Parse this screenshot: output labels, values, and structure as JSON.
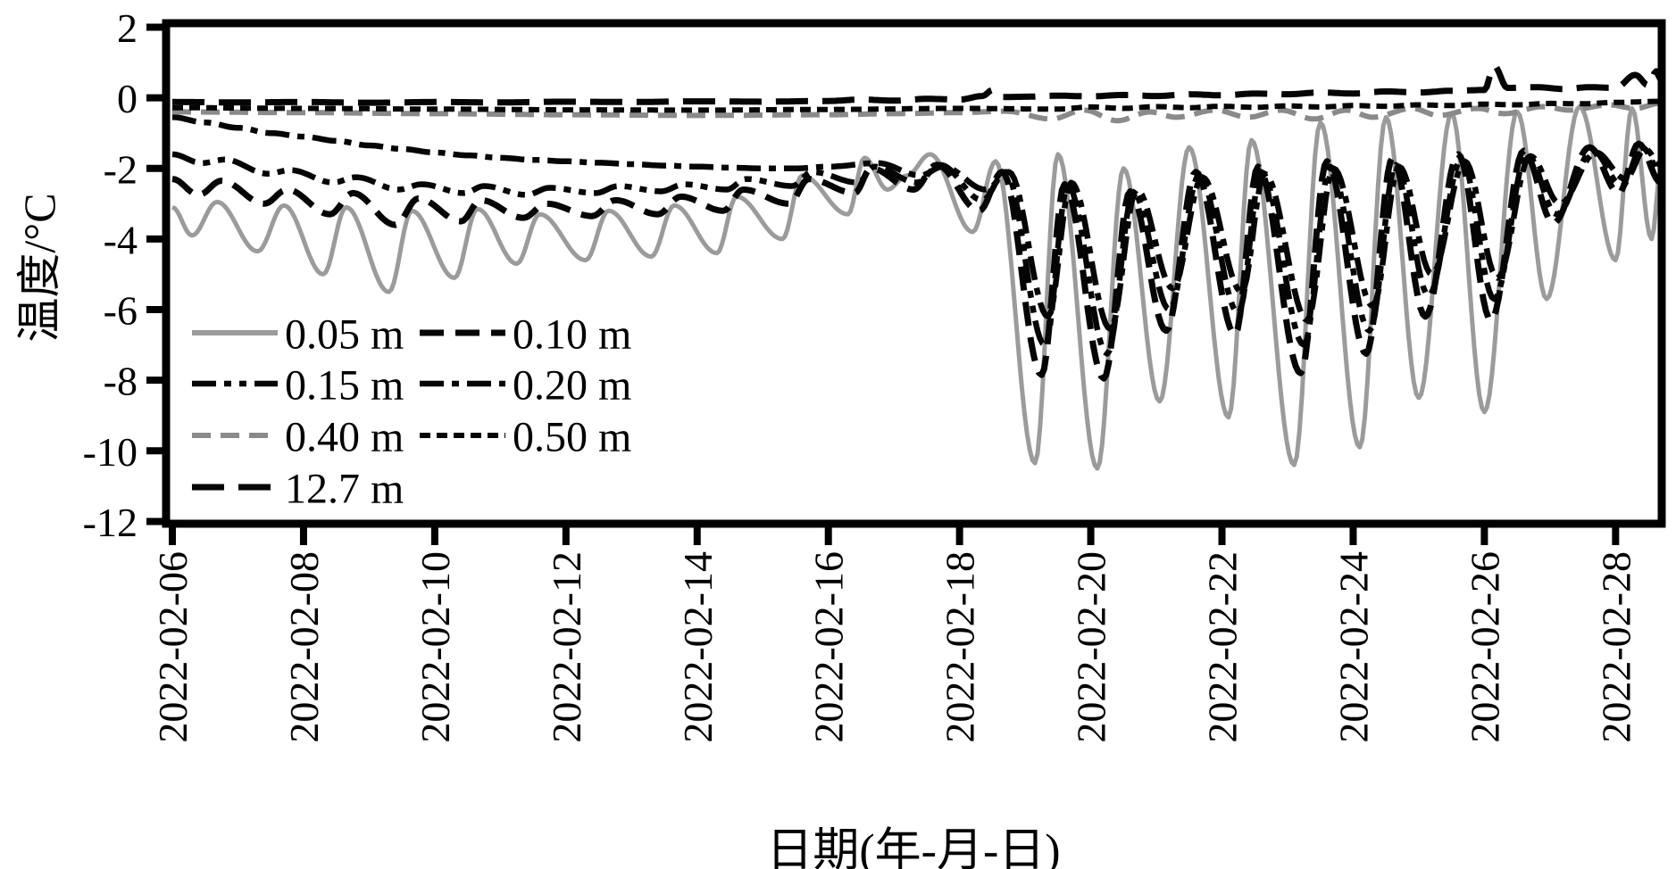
{
  "figure": {
    "x_axis_title": "日期(年-月-日)",
    "y_axis_title": "温度/°C",
    "frame_color": "#000000",
    "background_color": "#ffffff"
  },
  "chart_data": {
    "type": "line",
    "title": "",
    "xlabel": "日期(年-月-日)",
    "ylabel": "温度/°C",
    "x_unit": "days since 2022-02-06",
    "xlim": [
      0,
      22.69
    ],
    "ylim": [
      -12,
      2
    ],
    "yticks": [
      2,
      0,
      -2,
      -4,
      -6,
      -8,
      -10,
      -12
    ],
    "xtick_days": [
      0,
      2,
      4,
      6,
      8,
      10,
      12,
      14,
      16,
      18,
      20,
      22
    ],
    "xtick_labels": [
      "2022-02-06",
      "2022-02-08",
      "2022-02-10",
      "2022-02-12",
      "2022-02-14",
      "2022-02-16",
      "2022-02-18",
      "2022-02-20",
      "2022-02-22",
      "2022-02-24",
      "2022-02-26",
      "2022-02-28"
    ],
    "grid": false,
    "legend_position": "inside lower-left",
    "legend_columns": 2,
    "series": [
      {
        "name": "0.05 m",
        "color": "#9b9b9b",
        "width": 5,
        "dash": "",
        "legend_row": 0,
        "legend_col": 0,
        "points": [
          [
            0,
            -3.1
          ],
          [
            0.3,
            -3.9
          ],
          [
            0.68,
            -2.95
          ],
          [
            1.3,
            -4.35
          ],
          [
            1.7,
            -3.05
          ],
          [
            2.3,
            -5.0
          ],
          [
            2.65,
            -3.1
          ],
          [
            3.3,
            -5.5
          ],
          [
            3.65,
            -3.2
          ],
          [
            4.3,
            -5.1
          ],
          [
            4.65,
            -3.15
          ],
          [
            5.25,
            -4.7
          ],
          [
            5.6,
            -3.3
          ],
          [
            6.3,
            -4.6
          ],
          [
            6.65,
            -3.2
          ],
          [
            7.3,
            -4.5
          ],
          [
            7.65,
            -3.05
          ],
          [
            8.3,
            -4.4
          ],
          [
            8.6,
            -2.8
          ],
          [
            9.3,
            -4.0
          ],
          [
            9.6,
            -2.2
          ],
          [
            10.3,
            -3.3
          ],
          [
            10.55,
            -1.7
          ],
          [
            10.9,
            -2.6
          ],
          [
            11.2,
            -2.2
          ],
          [
            11.55,
            -1.6
          ],
          [
            12.2,
            -3.8
          ],
          [
            12.55,
            -1.8
          ],
          [
            13.15,
            -10.35
          ],
          [
            13.5,
            -1.6
          ],
          [
            14.1,
            -10.5
          ],
          [
            14.5,
            -2.0
          ],
          [
            15.05,
            -8.6
          ],
          [
            15.5,
            -1.4
          ],
          [
            16.1,
            -9.05
          ],
          [
            16.45,
            -1.2
          ],
          [
            17.1,
            -10.4
          ],
          [
            17.5,
            -0.7
          ],
          [
            18.1,
            -9.9
          ],
          [
            18.5,
            -0.55
          ],
          [
            19.0,
            -8.5
          ],
          [
            19.5,
            -0.45
          ],
          [
            20.0,
            -8.9
          ],
          [
            20.5,
            -0.4
          ],
          [
            20.95,
            -5.7
          ],
          [
            21.45,
            -0.25
          ],
          [
            22.0,
            -4.6
          ],
          [
            22.25,
            -0.3
          ],
          [
            22.55,
            -4.0
          ],
          [
            22.69,
            -2.0
          ]
        ]
      },
      {
        "name": "0.10 m",
        "color": "#050505",
        "width": 7,
        "dash": "27 13",
        "legend_row": 0,
        "legend_col": 1,
        "points": [
          [
            0,
            -2.3
          ],
          [
            0.4,
            -2.75
          ],
          [
            0.75,
            -2.35
          ],
          [
            1.4,
            -3.0
          ],
          [
            1.75,
            -2.6
          ],
          [
            2.4,
            -3.3
          ],
          [
            2.75,
            -2.7
          ],
          [
            3.4,
            -3.6
          ],
          [
            3.75,
            -2.85
          ],
          [
            4.4,
            -3.5
          ],
          [
            4.7,
            -2.9
          ],
          [
            5.35,
            -3.4
          ],
          [
            5.7,
            -3.0
          ],
          [
            6.4,
            -3.35
          ],
          [
            6.75,
            -2.9
          ],
          [
            7.4,
            -3.3
          ],
          [
            7.75,
            -2.8
          ],
          [
            8.4,
            -3.2
          ],
          [
            8.7,
            -2.6
          ],
          [
            9.4,
            -3.0
          ],
          [
            9.7,
            -2.3
          ],
          [
            10.4,
            -2.7
          ],
          [
            10.65,
            -2.0
          ],
          [
            11.3,
            -2.6
          ],
          [
            11.65,
            -1.9
          ],
          [
            12.3,
            -3.2
          ],
          [
            12.65,
            -2.1
          ],
          [
            13.25,
            -7.85
          ],
          [
            13.6,
            -2.45
          ],
          [
            14.2,
            -7.95
          ],
          [
            14.6,
            -2.65
          ],
          [
            15.15,
            -6.6
          ],
          [
            15.6,
            -2.1
          ],
          [
            16.2,
            -6.7
          ],
          [
            16.55,
            -1.95
          ],
          [
            17.2,
            -7.8
          ],
          [
            17.6,
            -1.8
          ],
          [
            18.2,
            -7.25
          ],
          [
            18.6,
            -1.7
          ],
          [
            19.1,
            -6.2
          ],
          [
            19.6,
            -1.6
          ],
          [
            20.1,
            -6.3
          ],
          [
            20.6,
            -1.5
          ],
          [
            21.05,
            -3.55
          ],
          [
            21.6,
            -1.4
          ],
          [
            22.05,
            -2.7
          ],
          [
            22.35,
            -1.3
          ],
          [
            22.69,
            -2.4
          ]
        ]
      },
      {
        "name": "0.15 m",
        "color": "#050505",
        "width": 6.5,
        "dash": "27 9 8 9 8 9",
        "legend_row": 1,
        "legend_col": 0,
        "points": [
          [
            0,
            -1.6
          ],
          [
            0.45,
            -1.85
          ],
          [
            0.8,
            -1.75
          ],
          [
            1.45,
            -2.15
          ],
          [
            1.8,
            -2.05
          ],
          [
            2.45,
            -2.4
          ],
          [
            2.8,
            -2.25
          ],
          [
            3.45,
            -2.6
          ],
          [
            3.8,
            -2.45
          ],
          [
            4.45,
            -2.7
          ],
          [
            4.75,
            -2.5
          ],
          [
            5.4,
            -2.75
          ],
          [
            5.75,
            -2.55
          ],
          [
            6.45,
            -2.7
          ],
          [
            6.8,
            -2.5
          ],
          [
            7.45,
            -2.65
          ],
          [
            7.8,
            -2.45
          ],
          [
            8.45,
            -2.6
          ],
          [
            8.75,
            -2.3
          ],
          [
            9.45,
            -2.5
          ],
          [
            9.75,
            -2.1
          ],
          [
            10.45,
            -2.4
          ],
          [
            10.7,
            -1.95
          ],
          [
            11.35,
            -2.4
          ],
          [
            11.7,
            -1.9
          ],
          [
            12.35,
            -2.9
          ],
          [
            12.7,
            -2.1
          ],
          [
            13.3,
            -7.0
          ],
          [
            13.65,
            -2.5
          ],
          [
            14.25,
            -7.25
          ],
          [
            14.65,
            -2.7
          ],
          [
            15.2,
            -6.0
          ],
          [
            15.65,
            -2.2
          ],
          [
            16.25,
            -6.1
          ],
          [
            16.6,
            -2.1
          ],
          [
            17.25,
            -7.0
          ],
          [
            17.65,
            -1.95
          ],
          [
            18.25,
            -6.6
          ],
          [
            18.65,
            -1.9
          ],
          [
            19.15,
            -5.6
          ],
          [
            19.65,
            -1.75
          ],
          [
            20.15,
            -5.7
          ],
          [
            20.65,
            -1.6
          ],
          [
            21.1,
            -3.3
          ],
          [
            21.65,
            -1.5
          ],
          [
            22.1,
            -2.5
          ],
          [
            22.4,
            -1.4
          ],
          [
            22.69,
            -2.1
          ]
        ]
      },
      {
        "name": "0.20 m",
        "color": "#050505",
        "width": 6.5,
        "dash": "27 9 8 9",
        "legend_row": 1,
        "legend_col": 1,
        "points": [
          [
            0,
            -0.55
          ],
          [
            0.5,
            -0.7
          ],
          [
            1.0,
            -0.85
          ],
          [
            1.5,
            -1.0
          ],
          [
            2.0,
            -1.1
          ],
          [
            2.5,
            -1.22
          ],
          [
            3.0,
            -1.35
          ],
          [
            3.5,
            -1.45
          ],
          [
            4.0,
            -1.55
          ],
          [
            4.5,
            -1.63
          ],
          [
            5.0,
            -1.7
          ],
          [
            5.5,
            -1.76
          ],
          [
            6.0,
            -1.8
          ],
          [
            6.5,
            -1.84
          ],
          [
            7.0,
            -1.88
          ],
          [
            7.5,
            -1.92
          ],
          [
            8.0,
            -1.95
          ],
          [
            8.5,
            -1.98
          ],
          [
            9.0,
            -2.0
          ],
          [
            9.5,
            -2.0
          ],
          [
            10.0,
            -1.95
          ],
          [
            10.75,
            -1.85
          ],
          [
            11.4,
            -2.2
          ],
          [
            11.75,
            -1.95
          ],
          [
            12.4,
            -2.6
          ],
          [
            12.75,
            -2.1
          ],
          [
            13.35,
            -6.2
          ],
          [
            13.7,
            -2.4
          ],
          [
            14.3,
            -6.55
          ],
          [
            14.7,
            -2.6
          ],
          [
            15.25,
            -5.4
          ],
          [
            15.7,
            -2.25
          ],
          [
            16.3,
            -5.5
          ],
          [
            16.65,
            -2.15
          ],
          [
            17.3,
            -6.3
          ],
          [
            17.7,
            -2.0
          ],
          [
            18.3,
            -5.9
          ],
          [
            18.7,
            -1.95
          ],
          [
            19.2,
            -5.0
          ],
          [
            19.7,
            -1.8
          ],
          [
            20.2,
            -5.1
          ],
          [
            20.7,
            -1.65
          ],
          [
            21.15,
            -3.0
          ],
          [
            21.7,
            -1.55
          ],
          [
            22.15,
            -2.3
          ],
          [
            22.45,
            -1.45
          ],
          [
            22.69,
            -1.9
          ]
        ]
      },
      {
        "name": "0.40 m",
        "color": "#8a8a8a",
        "width": 6,
        "dash": "21 11",
        "legend_row": 2,
        "legend_col": 0,
        "points": [
          [
            0,
            -0.4
          ],
          [
            2,
            -0.42
          ],
          [
            4,
            -0.45
          ],
          [
            6,
            -0.48
          ],
          [
            8,
            -0.5
          ],
          [
            10,
            -0.48
          ],
          [
            11,
            -0.45
          ],
          [
            12,
            -0.42
          ],
          [
            12.7,
            -0.38
          ],
          [
            13.4,
            -0.6
          ],
          [
            13.9,
            -0.35
          ],
          [
            14.4,
            -0.65
          ],
          [
            14.9,
            -0.4
          ],
          [
            15.3,
            -0.55
          ],
          [
            15.9,
            -0.35
          ],
          [
            16.4,
            -0.55
          ],
          [
            16.9,
            -0.35
          ],
          [
            17.4,
            -0.6
          ],
          [
            17.9,
            -0.35
          ],
          [
            18.3,
            -0.55
          ],
          [
            18.9,
            -0.3
          ],
          [
            19.3,
            -0.5
          ],
          [
            19.9,
            -0.3
          ],
          [
            20.3,
            -0.45
          ],
          [
            20.9,
            -0.25
          ],
          [
            21.3,
            -0.35
          ],
          [
            21.9,
            -0.2
          ],
          [
            22.3,
            -0.3
          ],
          [
            22.69,
            -0.15
          ]
        ]
      },
      {
        "name": "0.50 m",
        "color": "#050505",
        "width": 6,
        "dash": "12 7",
        "legend_row": 2,
        "legend_col": 1,
        "points": [
          [
            0,
            -0.28
          ],
          [
            2,
            -0.3
          ],
          [
            4,
            -0.32
          ],
          [
            6,
            -0.34
          ],
          [
            8,
            -0.35
          ],
          [
            10,
            -0.33
          ],
          [
            12,
            -0.3
          ],
          [
            13.5,
            -0.32
          ],
          [
            14,
            -0.26
          ],
          [
            14.5,
            -0.3
          ],
          [
            15,
            -0.25
          ],
          [
            15.5,
            -0.28
          ],
          [
            16,
            -0.24
          ],
          [
            16.5,
            -0.27
          ],
          [
            17,
            -0.23
          ],
          [
            17.5,
            -0.26
          ],
          [
            18,
            -0.22
          ],
          [
            18.5,
            -0.24
          ],
          [
            19,
            -0.2
          ],
          [
            19.5,
            -0.22
          ],
          [
            20,
            -0.18
          ],
          [
            20.5,
            -0.2
          ],
          [
            21,
            -0.16
          ],
          [
            21.5,
            -0.17
          ],
          [
            22,
            -0.13
          ],
          [
            22.69,
            -0.1
          ]
        ]
      },
      {
        "name": "12.7 m",
        "color": "#050505",
        "width": 7,
        "dash": "36 16",
        "legend_row": 3,
        "legend_col": 0,
        "points": [
          [
            0,
            -0.12
          ],
          [
            1,
            -0.13
          ],
          [
            2,
            -0.12
          ],
          [
            3,
            -0.14
          ],
          [
            4,
            -0.12
          ],
          [
            5,
            -0.13
          ],
          [
            6,
            -0.11
          ],
          [
            7,
            -0.12
          ],
          [
            8,
            -0.1
          ],
          [
            9,
            -0.11
          ],
          [
            10,
            -0.09
          ],
          [
            10.5,
            -0.05
          ],
          [
            11,
            -0.08
          ],
          [
            11.5,
            -0.03
          ],
          [
            12,
            -0.05
          ],
          [
            12.35,
            0.05
          ],
          [
            12.5,
            0.22
          ],
          [
            12.65,
            0.02
          ],
          [
            13,
            0.03
          ],
          [
            13.5,
            0.06
          ],
          [
            14,
            0.04
          ],
          [
            14.5,
            0.08
          ],
          [
            15,
            0.05
          ],
          [
            15.5,
            0.1
          ],
          [
            16,
            0.07
          ],
          [
            16.5,
            0.12
          ],
          [
            17,
            0.1
          ],
          [
            17.5,
            0.15
          ],
          [
            18,
            0.12
          ],
          [
            18.5,
            0.18
          ],
          [
            19,
            0.15
          ],
          [
            19.5,
            0.2
          ],
          [
            20,
            0.22
          ],
          [
            20.15,
            0.9
          ],
          [
            20.35,
            0.28
          ],
          [
            20.8,
            0.3
          ],
          [
            21.2,
            0.25
          ],
          [
            21.6,
            0.3
          ],
          [
            22.0,
            0.28
          ],
          [
            22.3,
            0.65
          ],
          [
            22.5,
            0.35
          ],
          [
            22.62,
            0.75
          ],
          [
            22.69,
            0.5
          ]
        ]
      }
    ]
  }
}
